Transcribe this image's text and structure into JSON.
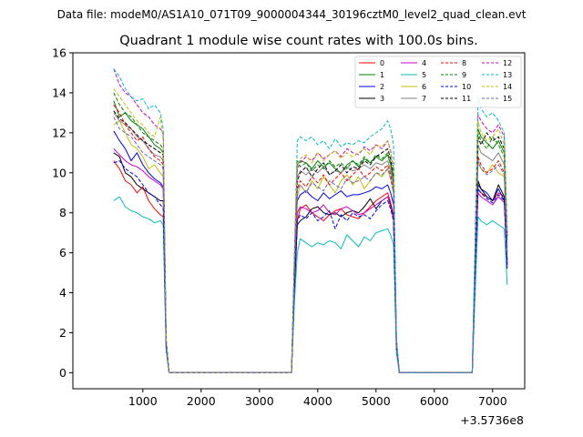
{
  "supertitle": "Data file: modeM0/AS1A10_071T09_9000004344_30196cztM0_level2_quad_clean.evt",
  "chart_data": {
    "type": "line",
    "title": "Quadrant 1 module wise count rates with 100.0s bins.",
    "xlabel": "",
    "ylabel": "",
    "x_offset_label": "+3.5736e8",
    "xlim": [
      -200,
      7550
    ],
    "ylim": [
      -0.8,
      16
    ],
    "xticks": [
      1000,
      2000,
      3000,
      4000,
      5000,
      6000,
      7000
    ],
    "xtick_labels": [
      "1000",
      "2000",
      "3000",
      "4000",
      "5000",
      "6000",
      "7000"
    ],
    "yticks": [
      0,
      2,
      4,
      6,
      8,
      10,
      12,
      14,
      16
    ],
    "ytick_labels": [
      "0",
      "2",
      "4",
      "6",
      "8",
      "10",
      "12",
      "14",
      "16"
    ],
    "legend_position": "top-right",
    "x": [
      500,
      600,
      700,
      800,
      900,
      1000,
      1100,
      1200,
      1300,
      1350,
      1400,
      1450,
      1500,
      3500,
      3550,
      3600,
      3650,
      3700,
      3800,
      3900,
      4000,
      4100,
      4200,
      4300,
      4400,
      4500,
      4600,
      4700,
      4800,
      4900,
      5000,
      5100,
      5200,
      5250,
      5300,
      5350,
      5400,
      5450,
      5500,
      6600,
      6650,
      6700,
      6750,
      6800,
      6900,
      7000,
      7100,
      7200,
      7250
    ],
    "series": [
      {
        "name": "0",
        "color": "#ff0000",
        "dash": "solid",
        "values": [
          10.6,
          10.2,
          9.6,
          9.4,
          9.0,
          9.3,
          8.6,
          8.2,
          7.9,
          7.8,
          1.2,
          0.0,
          0.0,
          0.0,
          0.0,
          4.0,
          7.6,
          8.2,
          8.4,
          8.0,
          7.8,
          7.6,
          7.9,
          8.1,
          8.2,
          7.9,
          7.8,
          7.7,
          8.0,
          8.3,
          8.6,
          8.8,
          9.0,
          8.5,
          7.8,
          1.2,
          0.0,
          0.0,
          0.0,
          0.0,
          0.0,
          5.0,
          9.2,
          9.0,
          8.8,
          8.6,
          9.0,
          8.8,
          5.5
        ]
      },
      {
        "name": "1",
        "color": "#008000",
        "dash": "solid",
        "values": [
          13.6,
          12.8,
          13.0,
          12.6,
          12.4,
          12.2,
          11.8,
          11.4,
          11.2,
          11.0,
          1.6,
          0.0,
          0.0,
          0.0,
          0.0,
          5.5,
          10.4,
          10.6,
          10.5,
          10.2,
          10.6,
          10.3,
          10.5,
          10.2,
          10.0,
          10.4,
          10.6,
          10.3,
          10.7,
          10.5,
          10.8,
          10.6,
          10.9,
          10.4,
          9.6,
          1.6,
          0.0,
          0.0,
          0.0,
          0.0,
          0.0,
          6.0,
          12.2,
          11.8,
          11.5,
          11.2,
          11.6,
          11.0,
          6.8
        ]
      },
      {
        "name": "2",
        "color": "#0000ff",
        "dash": "solid",
        "values": [
          12.1,
          11.6,
          11.2,
          10.6,
          11.0,
          10.4,
          10.0,
          9.7,
          9.5,
          9.3,
          1.4,
          0.0,
          0.0,
          0.0,
          0.0,
          5.0,
          8.6,
          8.9,
          9.1,
          8.8,
          8.6,
          9.0,
          8.7,
          8.9,
          9.1,
          8.8,
          8.9,
          8.9,
          9.0,
          9.1,
          9.3,
          9.2,
          9.4,
          9.0,
          8.4,
          1.4,
          0.0,
          0.0,
          0.0,
          0.0,
          0.0,
          5.5,
          9.4,
          9.2,
          9.0,
          8.6,
          9.2,
          8.6,
          5.6
        ]
      },
      {
        "name": "3",
        "color": "#000000",
        "dash": "solid",
        "values": [
          11.0,
          10.8,
          10.0,
          9.8,
          9.4,
          9.2,
          9.0,
          8.8,
          8.6,
          8.6,
          1.3,
          0.0,
          0.0,
          0.0,
          0.0,
          4.2,
          7.4,
          7.6,
          7.8,
          8.2,
          8.3,
          8.0,
          7.9,
          8.0,
          7.8,
          8.0,
          8.1,
          8.0,
          8.3,
          8.7,
          8.2,
          8.6,
          8.8,
          8.4,
          7.8,
          1.3,
          0.0,
          0.0,
          0.0,
          0.0,
          0.0,
          5.2,
          9.6,
          9.2,
          8.8,
          8.6,
          9.4,
          8.8,
          5.2
        ]
      },
      {
        "name": "4",
        "color": "#cc00cc",
        "dash": "solid",
        "values": [
          11.2,
          10.9,
          10.6,
          10.4,
          10.3,
          10.1,
          9.8,
          9.6,
          9.4,
          9.2,
          1.4,
          0.0,
          0.0,
          0.0,
          0.0,
          4.5,
          8.0,
          8.3,
          8.2,
          8.0,
          8.1,
          8.4,
          8.0,
          7.9,
          8.2,
          8.3,
          8.1,
          7.9,
          8.0,
          8.2,
          8.4,
          8.6,
          8.8,
          8.3,
          7.7,
          1.3,
          0.0,
          0.0,
          0.0,
          0.0,
          0.0,
          5.0,
          9.0,
          8.8,
          8.6,
          8.4,
          8.8,
          8.5,
          5.3
        ]
      },
      {
        "name": "5",
        "color": "#00bfbf",
        "dash": "solid",
        "values": [
          8.6,
          8.8,
          8.3,
          8.1,
          8.0,
          7.8,
          7.7,
          7.5,
          7.6,
          7.4,
          1.1,
          0.0,
          0.0,
          0.0,
          0.0,
          3.5,
          6.0,
          6.7,
          6.5,
          6.3,
          6.5,
          6.4,
          6.6,
          6.5,
          6.2,
          6.9,
          6.6,
          6.3,
          6.8,
          6.6,
          7.0,
          7.1,
          7.2,
          6.9,
          6.4,
          1.0,
          0.0,
          0.0,
          0.0,
          0.0,
          0.0,
          4.0,
          7.8,
          7.6,
          7.4,
          7.6,
          7.4,
          7.2,
          4.4
        ]
      },
      {
        "name": "6",
        "color": "#bfbf00",
        "dash": "solid",
        "values": [
          12.4,
          12.6,
          12.0,
          11.4,
          11.2,
          10.8,
          10.2,
          10.4,
          10.0,
          9.8,
          1.5,
          0.0,
          0.0,
          0.0,
          0.0,
          5.2,
          8.8,
          9.4,
          9.0,
          9.6,
          9.2,
          9.8,
          9.4,
          9.0,
          9.6,
          9.9,
          9.4,
          9.8,
          9.2,
          9.6,
          10.0,
          9.8,
          10.2,
          9.7,
          9.0,
          1.4,
          0.0,
          0.0,
          0.0,
          0.0,
          0.0,
          5.8,
          10.6,
          10.2,
          10.0,
          10.4,
          10.0,
          9.8,
          6.0
        ]
      },
      {
        "name": "7",
        "color": "#808080",
        "dash": "solid",
        "values": [
          13.0,
          12.6,
          12.4,
          12.2,
          11.8,
          11.6,
          11.2,
          10.9,
          10.8,
          10.6,
          1.6,
          0.0,
          0.0,
          0.0,
          0.0,
          5.4,
          9.8,
          10.1,
          9.9,
          10.2,
          10.0,
          10.3,
          9.9,
          10.1,
          10.0,
          10.3,
          10.1,
          10.2,
          10.4,
          10.2,
          10.5,
          10.4,
          10.6,
          10.1,
          9.4,
          1.5,
          0.0,
          0.0,
          0.0,
          0.0,
          0.0,
          5.9,
          11.4,
          11.0,
          10.8,
          10.6,
          11.0,
          10.4,
          6.3
        ]
      },
      {
        "name": "8",
        "color": "#ff0000",
        "dash": "dashed",
        "values": [
          13.4,
          13.0,
          12.4,
          12.0,
          11.6,
          11.8,
          11.2,
          10.8,
          10.6,
          10.4,
          1.5,
          0.0,
          0.0,
          0.0,
          0.0,
          5.0,
          9.2,
          9.6,
          9.3,
          9.8,
          9.5,
          9.9,
          9.4,
          9.7,
          10.0,
          9.6,
          9.9,
          10.2,
          9.8,
          10.0,
          10.3,
          10.1,
          10.4,
          9.9,
          9.1,
          1.4,
          0.0,
          0.0,
          0.0,
          0.0,
          0.0,
          5.8,
          10.8,
          10.4,
          10.0,
          10.2,
          10.6,
          10.0,
          6.1
        ]
      },
      {
        "name": "9",
        "color": "#008000",
        "dash": "dashed",
        "values": [
          14.0,
          13.4,
          13.0,
          12.8,
          12.4,
          12.0,
          11.8,
          11.6,
          11.4,
          11.2,
          1.6,
          0.0,
          0.0,
          0.0,
          0.0,
          5.6,
          10.6,
          10.3,
          10.5,
          10.1,
          10.4,
          10.2,
          10.6,
          10.3,
          10.5,
          10.2,
          10.6,
          10.4,
          10.8,
          10.5,
          10.9,
          10.7,
          11.0,
          10.5,
          9.7,
          1.6,
          0.0,
          0.0,
          0.0,
          0.0,
          0.0,
          6.1,
          12.0,
          11.6,
          11.2,
          11.8,
          11.4,
          10.8,
          6.6
        ]
      },
      {
        "name": "10",
        "color": "#0000ff",
        "dash": "dashed",
        "values": [
          10.5,
          10.6,
          10.2,
          10.0,
          9.8,
          9.4,
          9.0,
          8.8,
          8.4,
          8.2,
          1.3,
          0.0,
          0.0,
          0.0,
          0.0,
          4.3,
          7.6,
          7.9,
          7.7,
          8.0,
          7.6,
          7.8,
          8.1,
          7.2,
          7.9,
          7.6,
          8.0,
          7.8,
          7.9,
          7.7,
          8.1,
          8.4,
          8.6,
          8.2,
          7.6,
          1.3,
          0.0,
          0.0,
          0.0,
          0.0,
          0.0,
          5.0,
          9.2,
          9.0,
          8.7,
          8.5,
          8.9,
          8.6,
          5.4
        ]
      },
      {
        "name": "11",
        "color": "#000000",
        "dash": "dashed",
        "values": [
          13.1,
          12.7,
          12.5,
          12.2,
          11.9,
          11.6,
          11.4,
          11.2,
          11.0,
          10.9,
          1.6,
          0.0,
          0.0,
          0.0,
          0.0,
          5.4,
          9.6,
          10.0,
          10.3,
          9.8,
          10.2,
          10.5,
          9.9,
          10.1,
          10.4,
          10.0,
          10.3,
          10.2,
          10.6,
          10.4,
          10.8,
          11.0,
          11.2,
          10.7,
          9.9,
          1.5,
          0.0,
          0.0,
          0.0,
          0.0,
          0.0,
          5.9,
          11.8,
          11.4,
          12.0,
          11.6,
          11.8,
          11.2,
          6.8
        ]
      },
      {
        "name": "12",
        "color": "#cc00cc",
        "dash": "dashed",
        "values": [
          15.2,
          14.4,
          14.0,
          13.8,
          13.4,
          13.0,
          12.8,
          12.4,
          12.2,
          12.0,
          1.7,
          0.0,
          0.0,
          0.0,
          0.0,
          5.8,
          10.2,
          10.5,
          10.8,
          10.6,
          11.0,
          10.7,
          10.9,
          11.1,
          10.8,
          11.2,
          11.0,
          10.9,
          11.3,
          11.1,
          11.4,
          11.2,
          11.6,
          11.1,
          10.2,
          1.7,
          0.0,
          0.0,
          0.0,
          0.0,
          0.0,
          6.5,
          12.9,
          12.6,
          12.2,
          12.0,
          12.4,
          11.8,
          7.0
        ]
      },
      {
        "name": "13",
        "color": "#00bfbf",
        "dash": "dashed",
        "values": [
          15.2,
          14.8,
          14.2,
          13.8,
          13.6,
          13.7,
          13.2,
          13.4,
          13.0,
          12.2,
          1.7,
          0.0,
          0.0,
          0.0,
          0.0,
          6.0,
          11.6,
          11.8,
          11.6,
          11.8,
          11.4,
          11.6,
          11.2,
          11.7,
          11.3,
          11.5,
          11.4,
          11.6,
          11.5,
          11.8,
          12.0,
          12.2,
          12.6,
          12.2,
          11.4,
          1.8,
          0.0,
          0.0,
          0.0,
          0.0,
          0.0,
          7.0,
          13.8,
          13.2,
          12.8,
          13.0,
          12.6,
          12.0,
          7.2
        ]
      },
      {
        "name": "14",
        "color": "#bfbf00",
        "dash": "dashed",
        "values": [
          14.2,
          13.8,
          13.4,
          13.0,
          12.6,
          12.4,
          12.0,
          11.8,
          12.8,
          11.6,
          1.6,
          0.0,
          0.0,
          0.0,
          0.0,
          5.6,
          10.4,
          10.7,
          10.9,
          10.5,
          11.0,
          10.6,
          10.9,
          11.1,
          10.7,
          11.0,
          10.8,
          11.0,
          11.2,
          10.9,
          11.4,
          11.3,
          11.6,
          11.0,
          10.1,
          1.6,
          0.0,
          0.0,
          0.0,
          0.0,
          0.0,
          6.4,
          12.6,
          12.0,
          11.6,
          11.8,
          12.2,
          11.4,
          6.9
        ]
      },
      {
        "name": "15",
        "color": "#6666cc",
        "dash": "dashed",
        "values": [
          12.8,
          12.2,
          12.0,
          11.8,
          11.4,
          11.0,
          10.8,
          10.6,
          10.4,
          10.2,
          1.5,
          0.0,
          0.0,
          0.0,
          0.0,
          5.2,
          9.2,
          9.4,
          9.0,
          9.5,
          9.3,
          9.1,
          9.6,
          9.4,
          9.2,
          9.7,
          9.5,
          9.6,
          9.8,
          9.6,
          10.0,
          9.9,
          10.2,
          9.7,
          9.0,
          1.4,
          0.0,
          0.0,
          0.0,
          0.0,
          0.0,
          5.8,
          10.6,
          10.2,
          9.9,
          10.1,
          10.4,
          9.9,
          6.0
        ]
      }
    ]
  }
}
